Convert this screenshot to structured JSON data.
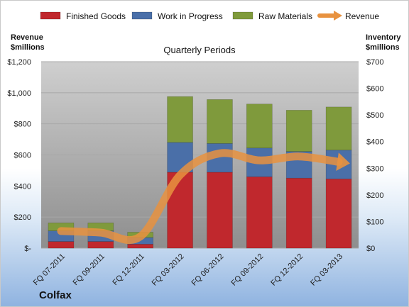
{
  "chart_data": {
    "type": "bar",
    "subtitle": "Quarterly Periods",
    "brand": "Colfax",
    "ylabel_left": [
      "Revenue",
      "$millions"
    ],
    "ylabel_right": [
      "Inventory",
      "$millions"
    ],
    "categories": [
      "FQ 07-2011",
      "FQ 09-2011",
      "FQ 12-2011",
      "FQ 03-2012",
      "FQ 06-2012",
      "FQ 09-2012",
      "FQ 12-2012",
      "FQ 03-2013"
    ],
    "stacked_series": [
      {
        "name": "Finished Goods",
        "color": "#c0282d",
        "values": [
          25,
          25,
          15,
          285,
          285,
          268,
          263,
          260
        ]
      },
      {
        "name": "Work in Progress",
        "color": "#4a6fa8",
        "values": [
          40,
          40,
          25,
          112,
          108,
          108,
          100,
          108
        ]
      },
      {
        "name": "Raw Materials",
        "color": "#7f9a3c",
        "values": [
          30,
          30,
          20,
          172,
          165,
          165,
          155,
          162
        ]
      }
    ],
    "line_series": {
      "name": "Revenue",
      "color": "#e8923f",
      "values": [
        110,
        100,
        75,
        470,
        610,
        565,
        590,
        555
      ]
    },
    "left_axis": {
      "min": 0,
      "max": 1200,
      "ticks": [
        "$-",
        "$200",
        "$400",
        "$600",
        "$800",
        "$1,000",
        "$1,200"
      ]
    },
    "right_axis": {
      "min": 0,
      "max": 700,
      "ticks": [
        "$0",
        "$100",
        "$200",
        "$300",
        "$400",
        "$500",
        "$600",
        "$700"
      ]
    },
    "grid": true,
    "legend_position": "top"
  }
}
